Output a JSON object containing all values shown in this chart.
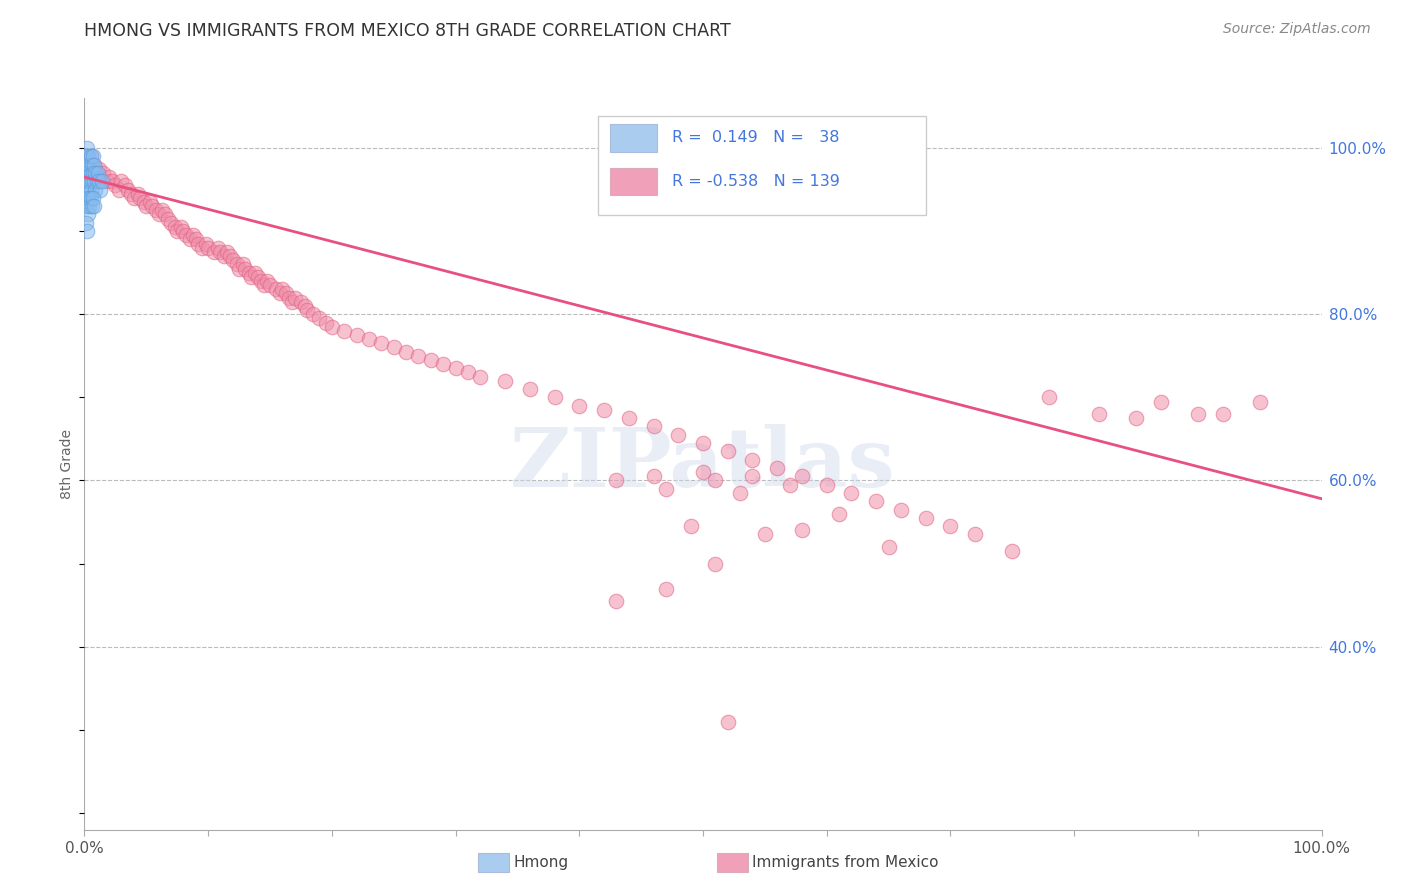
{
  "title": "HMONG VS IMMIGRANTS FROM MEXICO 8TH GRADE CORRELATION CHART",
  "source": "Source: ZipAtlas.com",
  "ylabel": "8th Grade",
  "watermark": "ZIPatlas",
  "background_color": "#ffffff",
  "grid_color": "#bbbbbb",
  "hmong_color": "#88bbee",
  "hmong_edge_color": "#5599dd",
  "mexico_color": "#f090aa",
  "mexico_edge_color": "#e06080",
  "trendline_color": "#e85080",
  "legend_box_color_hmong": "#aaccee",
  "legend_box_color_mexico": "#f0a0b8",
  "right_tick_color": "#4477dd",
  "xlim": [
    0.0,
    1.0
  ],
  "ylim": [
    0.18,
    1.06
  ],
  "trendline_x": [
    0.0,
    1.0
  ],
  "trendline_y": [
    0.965,
    0.578
  ],
  "hmong_x": [
    0.001,
    0.001,
    0.001,
    0.002,
    0.002,
    0.002,
    0.002,
    0.003,
    0.003,
    0.003,
    0.003,
    0.004,
    0.004,
    0.004,
    0.005,
    0.005,
    0.005,
    0.006,
    0.006,
    0.007,
    0.007,
    0.008,
    0.008,
    0.009,
    0.009,
    0.01,
    0.011,
    0.012,
    0.013,
    0.014,
    0.001,
    0.002,
    0.003,
    0.004,
    0.005,
    0.006,
    0.007,
    0.008
  ],
  "hmong_y": [
    0.99,
    0.97,
    0.95,
    1.0,
    0.98,
    0.96,
    0.93,
    0.99,
    0.97,
    0.95,
    0.92,
    0.98,
    0.96,
    0.94,
    0.99,
    0.97,
    0.95,
    0.98,
    0.96,
    0.99,
    0.97,
    0.98,
    0.96,
    0.97,
    0.95,
    0.96,
    0.97,
    0.96,
    0.95,
    0.96,
    0.91,
    0.9,
    0.94,
    0.93,
    0.94,
    0.93,
    0.94,
    0.93
  ],
  "mexico_x": [
    0.005,
    0.008,
    0.01,
    0.012,
    0.015,
    0.018,
    0.02,
    0.022,
    0.025,
    0.028,
    0.03,
    0.033,
    0.035,
    0.038,
    0.04,
    0.043,
    0.045,
    0.048,
    0.05,
    0.053,
    0.055,
    0.058,
    0.06,
    0.063,
    0.065,
    0.068,
    0.07,
    0.073,
    0.075,
    0.078,
    0.08,
    0.082,
    0.085,
    0.088,
    0.09,
    0.092,
    0.095,
    0.098,
    0.1,
    0.105,
    0.108,
    0.11,
    0.113,
    0.115,
    0.118,
    0.12,
    0.123,
    0.125,
    0.128,
    0.13,
    0.133,
    0.135,
    0.138,
    0.14,
    0.143,
    0.145,
    0.148,
    0.15,
    0.155,
    0.158,
    0.16,
    0.163,
    0.165,
    0.168,
    0.17,
    0.175,
    0.178,
    0.18,
    0.185,
    0.19,
    0.195,
    0.2,
    0.21,
    0.22,
    0.23,
    0.24,
    0.25,
    0.26,
    0.27,
    0.28,
    0.29,
    0.3,
    0.31,
    0.32,
    0.34,
    0.36,
    0.38,
    0.4,
    0.42,
    0.44,
    0.46,
    0.48,
    0.5,
    0.52,
    0.54,
    0.56,
    0.58,
    0.6,
    0.62,
    0.64,
    0.66,
    0.68,
    0.7,
    0.72,
    0.75,
    0.78,
    0.82,
    0.85,
    0.87,
    0.9,
    0.92,
    0.95,
    0.43,
    0.46,
    0.5,
    0.54,
    0.57,
    0.51,
    0.47,
    0.53,
    0.61,
    0.65,
    0.58,
    0.49,
    0.55,
    0.51,
    0.47,
    0.43,
    0.52
  ],
  "mexico_y": [
    0.99,
    0.98,
    0.97,
    0.975,
    0.97,
    0.96,
    0.965,
    0.96,
    0.955,
    0.95,
    0.96,
    0.955,
    0.95,
    0.945,
    0.94,
    0.945,
    0.94,
    0.935,
    0.93,
    0.935,
    0.93,
    0.925,
    0.92,
    0.925,
    0.92,
    0.915,
    0.91,
    0.905,
    0.9,
    0.905,
    0.9,
    0.895,
    0.89,
    0.895,
    0.89,
    0.885,
    0.88,
    0.885,
    0.88,
    0.875,
    0.88,
    0.875,
    0.87,
    0.875,
    0.87,
    0.865,
    0.86,
    0.855,
    0.86,
    0.855,
    0.85,
    0.845,
    0.85,
    0.845,
    0.84,
    0.835,
    0.84,
    0.835,
    0.83,
    0.825,
    0.83,
    0.825,
    0.82,
    0.815,
    0.82,
    0.815,
    0.81,
    0.805,
    0.8,
    0.795,
    0.79,
    0.785,
    0.78,
    0.775,
    0.77,
    0.765,
    0.76,
    0.755,
    0.75,
    0.745,
    0.74,
    0.735,
    0.73,
    0.725,
    0.72,
    0.71,
    0.7,
    0.69,
    0.685,
    0.675,
    0.665,
    0.655,
    0.645,
    0.635,
    0.625,
    0.615,
    0.605,
    0.595,
    0.585,
    0.575,
    0.565,
    0.555,
    0.545,
    0.535,
    0.515,
    0.7,
    0.68,
    0.675,
    0.695,
    0.68,
    0.68,
    0.695,
    0.6,
    0.605,
    0.61,
    0.605,
    0.595,
    0.6,
    0.59,
    0.585,
    0.56,
    0.52,
    0.54,
    0.545,
    0.535,
    0.5,
    0.47,
    0.455,
    0.31
  ]
}
